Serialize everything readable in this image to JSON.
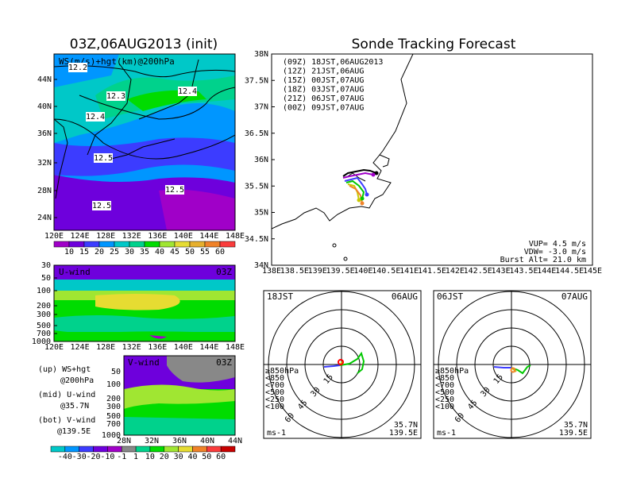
{
  "left_title": "03Z,06AUG2013 (init)",
  "right_title": "Sonde Tracking Forecast",
  "map_panel": {
    "label": "WS(m/s)+hgt(km)@200hPa",
    "lat_ticks": [
      "44N",
      "40N",
      "36N",
      "32N",
      "28N",
      "24N"
    ],
    "lon_ticks": [
      "120E",
      "124E",
      "128E",
      "132E",
      "136E",
      "140E",
      "144E",
      "148E"
    ],
    "contour_labels": [
      "12.2",
      "12.3",
      "12.4",
      "12.4",
      "12.5",
      "12.5",
      "12.5"
    ],
    "colorbar_labels": [
      "10",
      "15",
      "20",
      "25",
      "30",
      "35",
      "40",
      "45",
      "50",
      "55",
      "60"
    ],
    "colorbar_colors": [
      "#a000c8",
      "#6e00dc",
      "#3c3cff",
      "#0096ff",
      "#00c8c8",
      "#00d28c",
      "#00dc00",
      "#a0e632",
      "#e6dc32",
      "#e6af2d",
      "#f08228",
      "#fa3c3c"
    ]
  },
  "u_panel": {
    "label": "U-wind",
    "time": "03Z",
    "y_ticks": [
      "30",
      "50",
      "100",
      "200",
      "300",
      "500",
      "700",
      "1000"
    ],
    "x_ticks": [
      "120E",
      "124E",
      "128E",
      "132E",
      "136E",
      "140E",
      "144E",
      "148E"
    ]
  },
  "v_panel": {
    "label": "V-wind",
    "time": "03Z",
    "y_ticks": [
      "50",
      "100",
      "200",
      "300",
      "500",
      "700",
      "1000"
    ],
    "x_ticks": [
      "28N",
      "32N",
      "36N",
      "40N",
      "44N"
    ]
  },
  "legend_text": {
    "up1": "(up) WS+hgt",
    "up2": "@200hPa",
    "mid1": "(mid) U-wind",
    "mid2": "@35.7N",
    "bot1": "(bot) V-wind",
    "bot2": "@139.5E"
  },
  "wind_colorbar_labels": [
    "-40",
    "-30",
    "-20",
    "-10",
    "-1",
    "1",
    "10",
    "20",
    "30",
    "40",
    "50",
    "60"
  ],
  "tracking": {
    "lat_ticks": [
      "38N",
      "37.5N",
      "37N",
      "36.5N",
      "36N",
      "35.5N",
      "35N",
      "34.5N",
      "34N"
    ],
    "lon_ticks": [
      "138E",
      "138.5E",
      "139E",
      "139.5E",
      "140E",
      "140.5E",
      "141E",
      "141.5E",
      "142E",
      "142.5E",
      "143E",
      "143.5E",
      "144E",
      "144.5E",
      "145E"
    ],
    "legend": [
      {
        "text": "(09Z) 18JST,06AUG2013",
        "color": "#000000"
      },
      {
        "text": "(12Z) 21JST,06AUG",
        "color": "#a000c8"
      },
      {
        "text": "(15Z) 00JST,07AUG",
        "color": "#3c3cff"
      },
      {
        "text": "(18Z) 03JST,07AUG",
        "color": "#00c800"
      },
      {
        "text": "(21Z) 06JST,07AUG",
        "color": "#c8c800"
      },
      {
        "text": "(00Z) 09JST,07AUG",
        "color": "#f08228"
      }
    ],
    "vup": "VUP= 4.5 m/s",
    "vdw": "VDW= -3.0 m/s",
    "burst": "Burst Alt= 21.0 km"
  },
  "hodo_left": {
    "time": "18JST",
    "date": "06AUG",
    "ring_labels": [
      "15",
      "30",
      "45",
      "60"
    ],
    "levels": [
      {
        "text": "≥850hPa",
        "color": "#ff0000"
      },
      {
        "text": "<850",
        "color": "#f08228"
      },
      {
        "text": "<700",
        "color": "#c8c800"
      },
      {
        "text": "<500",
        "color": "#00c800"
      },
      {
        "text": "<250",
        "color": "#00c8c8"
      },
      {
        "text": "<100",
        "color": "#3c3cff"
      }
    ],
    "units": "ms-1",
    "lat": "35.7N",
    "lon": "139.5E"
  },
  "hodo_right": {
    "time": "06JST",
    "date": "07AUG",
    "units": "ms-1",
    "lat": "35.7N",
    "lon": "139.5E"
  }
}
